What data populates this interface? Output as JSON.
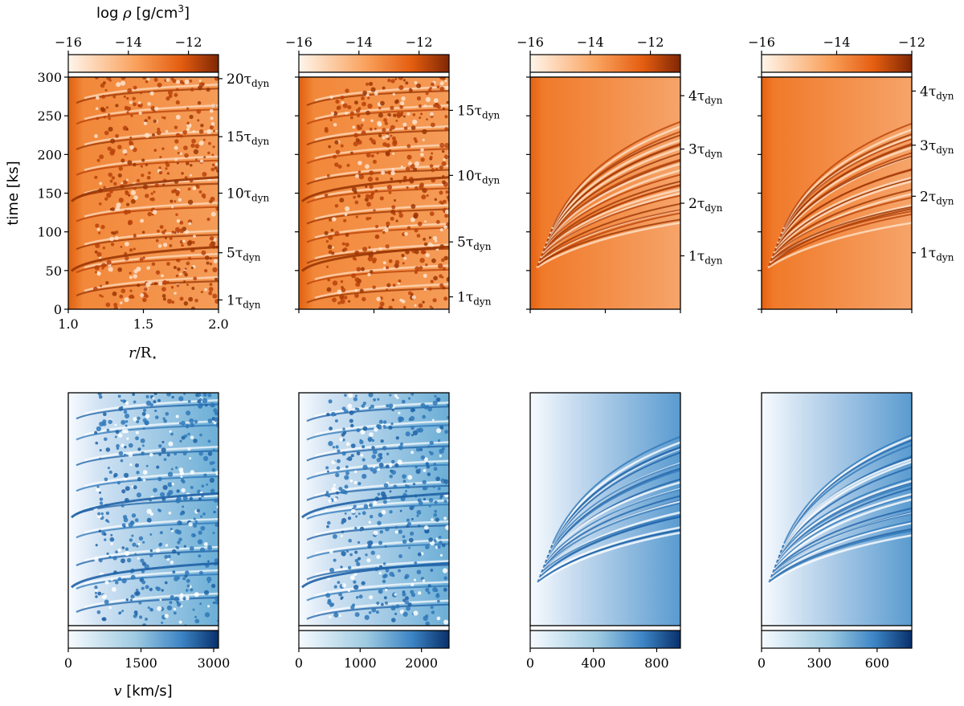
{
  "chart_data": [
    {
      "type": "heatmap",
      "title": "",
      "quantity": "density",
      "colorbar": {
        "label_prefix": "log",
        "label_symbol": "ρ",
        "label_unit": "[g/cm",
        "label_exp": "3",
        "label_close": "]",
        "range": [
          -16,
          -11
        ],
        "ticks": [
          -16,
          -14,
          -12
        ],
        "tick_labels": [
          "−16",
          "−14",
          "−12"
        ],
        "cmap": [
          "#fff5eb",
          "#f07a2a",
          "#7f2704"
        ]
      },
      "xlabel_r": "r",
      "xlabel_sub": "⋆",
      "xlabel_mid": "/R",
      "xticks": [
        1.0,
        1.5,
        2.0
      ],
      "xtick_labels": [
        "1.0",
        "1.5",
        "2.0"
      ],
      "xlim": [
        1.0,
        2.0
      ],
      "ylabel": "time [ks]",
      "ylim": [
        0,
        300
      ],
      "yticks": [
        0,
        50,
        100,
        150,
        200,
        250,
        300
      ],
      "ytick_labels": [
        "0",
        "50",
        "100",
        "150",
        "200",
        "250",
        "300"
      ],
      "tdyn_ticks": [
        {
          "t": 12,
          "n": "1"
        },
        {
          "t": 73,
          "n": "5"
        },
        {
          "t": 150,
          "n": "10"
        },
        {
          "t": 223,
          "n": "15"
        },
        {
          "t": 298,
          "n": "20"
        }
      ],
      "pattern": "clumpy"
    },
    {
      "type": "heatmap",
      "quantity": "density",
      "colorbar": {
        "range": [
          -16,
          -11
        ],
        "ticks": [
          -16,
          -14,
          -12
        ],
        "tick_labels": [
          "−16",
          "−14",
          "−12"
        ],
        "cmap": [
          "#fff5eb",
          "#f07a2a",
          "#7f2704"
        ]
      },
      "ylim": [
        0,
        300
      ],
      "tdyn_ticks": [
        {
          "t": 16,
          "n": "1"
        },
        {
          "t": 87,
          "n": "5"
        },
        {
          "t": 173,
          "n": "10"
        },
        {
          "t": 257,
          "n": "15"
        }
      ],
      "pattern": "clumpy"
    },
    {
      "type": "heatmap",
      "quantity": "density",
      "colorbar": {
        "range": [
          -16,
          -11
        ],
        "ticks": [
          -16,
          -14,
          -12
        ],
        "tick_labels": [
          "−16",
          "−14",
          "−12"
        ],
        "cmap": [
          "#fff5eb",
          "#f07a2a",
          "#7f2704"
        ]
      },
      "ylim": [
        0,
        300
      ],
      "tdyn_ticks": [
        {
          "t": 69,
          "n": "1"
        },
        {
          "t": 137,
          "n": "2"
        },
        {
          "t": 207,
          "n": "3"
        },
        {
          "t": 276,
          "n": "4"
        }
      ],
      "pattern": "streaks"
    },
    {
      "type": "heatmap",
      "quantity": "density",
      "colorbar": {
        "range": [
          -16,
          -12
        ],
        "ticks": [
          -16,
          -14,
          -12
        ],
        "tick_labels": [
          "−16",
          "−14",
          "−12"
        ],
        "cmap": [
          "#fff5eb",
          "#f07a2a",
          "#7f2704"
        ]
      },
      "ylim": [
        0,
        300
      ],
      "tdyn_ticks": [
        {
          "t": 73,
          "n": "1"
        },
        {
          "t": 146,
          "n": "2"
        },
        {
          "t": 212,
          "n": "3"
        },
        {
          "t": 282,
          "n": "4"
        }
      ],
      "pattern": "streaks"
    },
    {
      "type": "heatmap",
      "quantity": "velocity",
      "colorbar": {
        "label_symbol": "v",
        "label_unit": "[km/s]",
        "range": [
          0,
          3100
        ],
        "ticks": [
          0,
          1500,
          3000
        ],
        "tick_labels": [
          "0",
          "1500",
          "3000"
        ],
        "cmap": [
          "#f7fbff",
          "#6aaed6",
          "#08306b"
        ]
      },
      "pattern": "clumpy"
    },
    {
      "type": "heatmap",
      "quantity": "velocity",
      "colorbar": {
        "range": [
          0,
          2450
        ],
        "ticks": [
          0,
          1000,
          2000
        ],
        "tick_labels": [
          "0",
          "1000",
          "2000"
        ],
        "cmap": [
          "#f7fbff",
          "#6aaed6",
          "#08306b"
        ]
      },
      "pattern": "clumpy"
    },
    {
      "type": "heatmap",
      "quantity": "velocity",
      "colorbar": {
        "range": [
          0,
          950
        ],
        "ticks": [
          0,
          400,
          800
        ],
        "tick_labels": [
          "0",
          "400",
          "800"
        ],
        "cmap": [
          "#f7fbff",
          "#6aaed6",
          "#08306b"
        ]
      },
      "pattern": "streaks"
    },
    {
      "type": "heatmap",
      "quantity": "velocity",
      "colorbar": {
        "range": [
          0,
          780
        ],
        "ticks": [
          0,
          300,
          600
        ],
        "tick_labels": [
          "0",
          "300",
          "600"
        ],
        "cmap": [
          "#f7fbff",
          "#6aaed6",
          "#08306b"
        ]
      },
      "pattern": "streaks"
    }
  ],
  "tdyn_symbol": "τ",
  "tdyn_sub": "dyn"
}
